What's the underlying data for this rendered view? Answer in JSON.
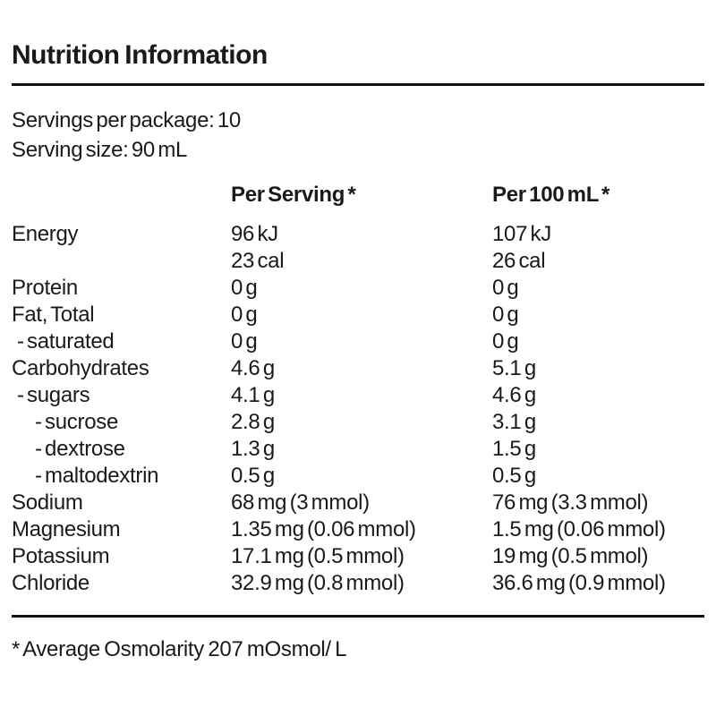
{
  "header": {
    "title": "Nutrition Information"
  },
  "meta": {
    "servings_per_package": "Servings per package: 10",
    "serving_size": "Serving size: 90 mL"
  },
  "table": {
    "columns": [
      "Per Serving *",
      "Per 100 mL *"
    ],
    "rows": [
      {
        "label": "Energy",
        "indent": 0,
        "per_serving": "96 kJ",
        "per_100ml": "107 kJ"
      },
      {
        "label": "",
        "indent": 0,
        "per_serving": "23 cal",
        "per_100ml": "26 cal"
      },
      {
        "label": "Protein",
        "indent": 0,
        "per_serving": "0 g",
        "per_100ml": "0 g"
      },
      {
        "label": "Fat, Total",
        "indent": 0,
        "per_serving": "0 g",
        "per_100ml": "0 g"
      },
      {
        "label": "- saturated",
        "indent": 1,
        "per_serving": "0 g",
        "per_100ml": "0 g"
      },
      {
        "label": "Carbohydrates",
        "indent": 0,
        "per_serving": "4.6 g",
        "per_100ml": "5.1 g"
      },
      {
        "label": "- sugars",
        "indent": 1,
        "per_serving": "4.1 g",
        "per_100ml": "4.6 g"
      },
      {
        "label": "- sucrose",
        "indent": 2,
        "per_serving": "2.8 g",
        "per_100ml": "3.1 g"
      },
      {
        "label": "- dextrose",
        "indent": 2,
        "per_serving": "1.3 g",
        "per_100ml": "1.5 g"
      },
      {
        "label": "- maltodextrin",
        "indent": 2,
        "per_serving": "0.5 g",
        "per_100ml": "0.5 g"
      },
      {
        "label": "Sodium",
        "indent": 0,
        "per_serving": "68 mg (3 mmol)",
        "per_100ml": "76 mg (3.3 mmol)"
      },
      {
        "label": "Magnesium",
        "indent": 0,
        "per_serving": "1.35 mg (0.06 mmol)",
        "per_100ml": "1.5 mg (0.06 mmol)"
      },
      {
        "label": "Potassium",
        "indent": 0,
        "per_serving": "17.1 mg (0.5 mmol)",
        "per_100ml": "19 mg (0.5 mmol)"
      },
      {
        "label": "Chloride",
        "indent": 0,
        "per_serving": "32.9 mg (0.8 mmol)",
        "per_100ml": "36.6 mg (0.9 mmol)"
      }
    ]
  },
  "footer": {
    "note": "* Average Osmolarity 207 mOsmol/ L"
  },
  "colors": {
    "text": "#1a1a1a",
    "rule": "#111111",
    "background": "#ffffff"
  }
}
